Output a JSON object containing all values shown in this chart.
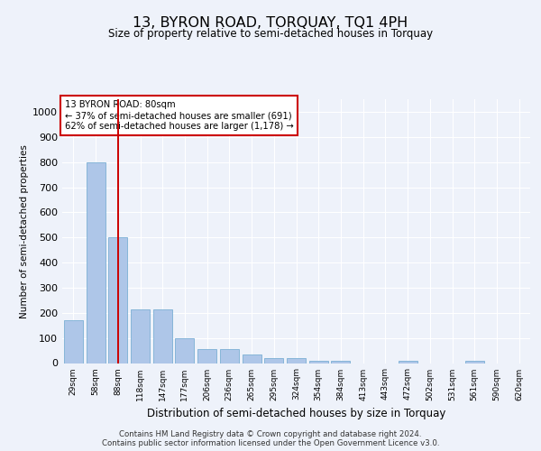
{
  "title": "13, BYRON ROAD, TORQUAY, TQ1 4PH",
  "subtitle": "Size of property relative to semi-detached houses in Torquay",
  "xlabel": "Distribution of semi-detached houses by size in Torquay",
  "ylabel": "Number of semi-detached properties",
  "categories": [
    "29sqm",
    "58sqm",
    "88sqm",
    "118sqm",
    "147sqm",
    "177sqm",
    "206sqm",
    "236sqm",
    "265sqm",
    "295sqm",
    "324sqm",
    "354sqm",
    "384sqm",
    "413sqm",
    "443sqm",
    "472sqm",
    "502sqm",
    "531sqm",
    "561sqm",
    "590sqm",
    "620sqm"
  ],
  "values": [
    170,
    800,
    500,
    215,
    215,
    100,
    55,
    55,
    35,
    20,
    20,
    10,
    10,
    0,
    0,
    10,
    0,
    0,
    10,
    0,
    0
  ],
  "bar_color": "#aec6e8",
  "bar_edge_color": "#7bafd4",
  "vline_x": 2,
  "vline_color": "#cc0000",
  "annotation_text": "13 BYRON ROAD: 80sqm\n← 37% of semi-detached houses are smaller (691)\n62% of semi-detached houses are larger (1,178) →",
  "annotation_box_color": "#ffffff",
  "annotation_box_edge": "#cc0000",
  "ylim": [
    0,
    1050
  ],
  "yticks": [
    0,
    100,
    200,
    300,
    400,
    500,
    600,
    700,
    800,
    900,
    1000
  ],
  "background_color": "#eef2fa",
  "grid_color": "#ffffff",
  "footer": "Contains HM Land Registry data © Crown copyright and database right 2024.\nContains public sector information licensed under the Open Government Licence v3.0."
}
